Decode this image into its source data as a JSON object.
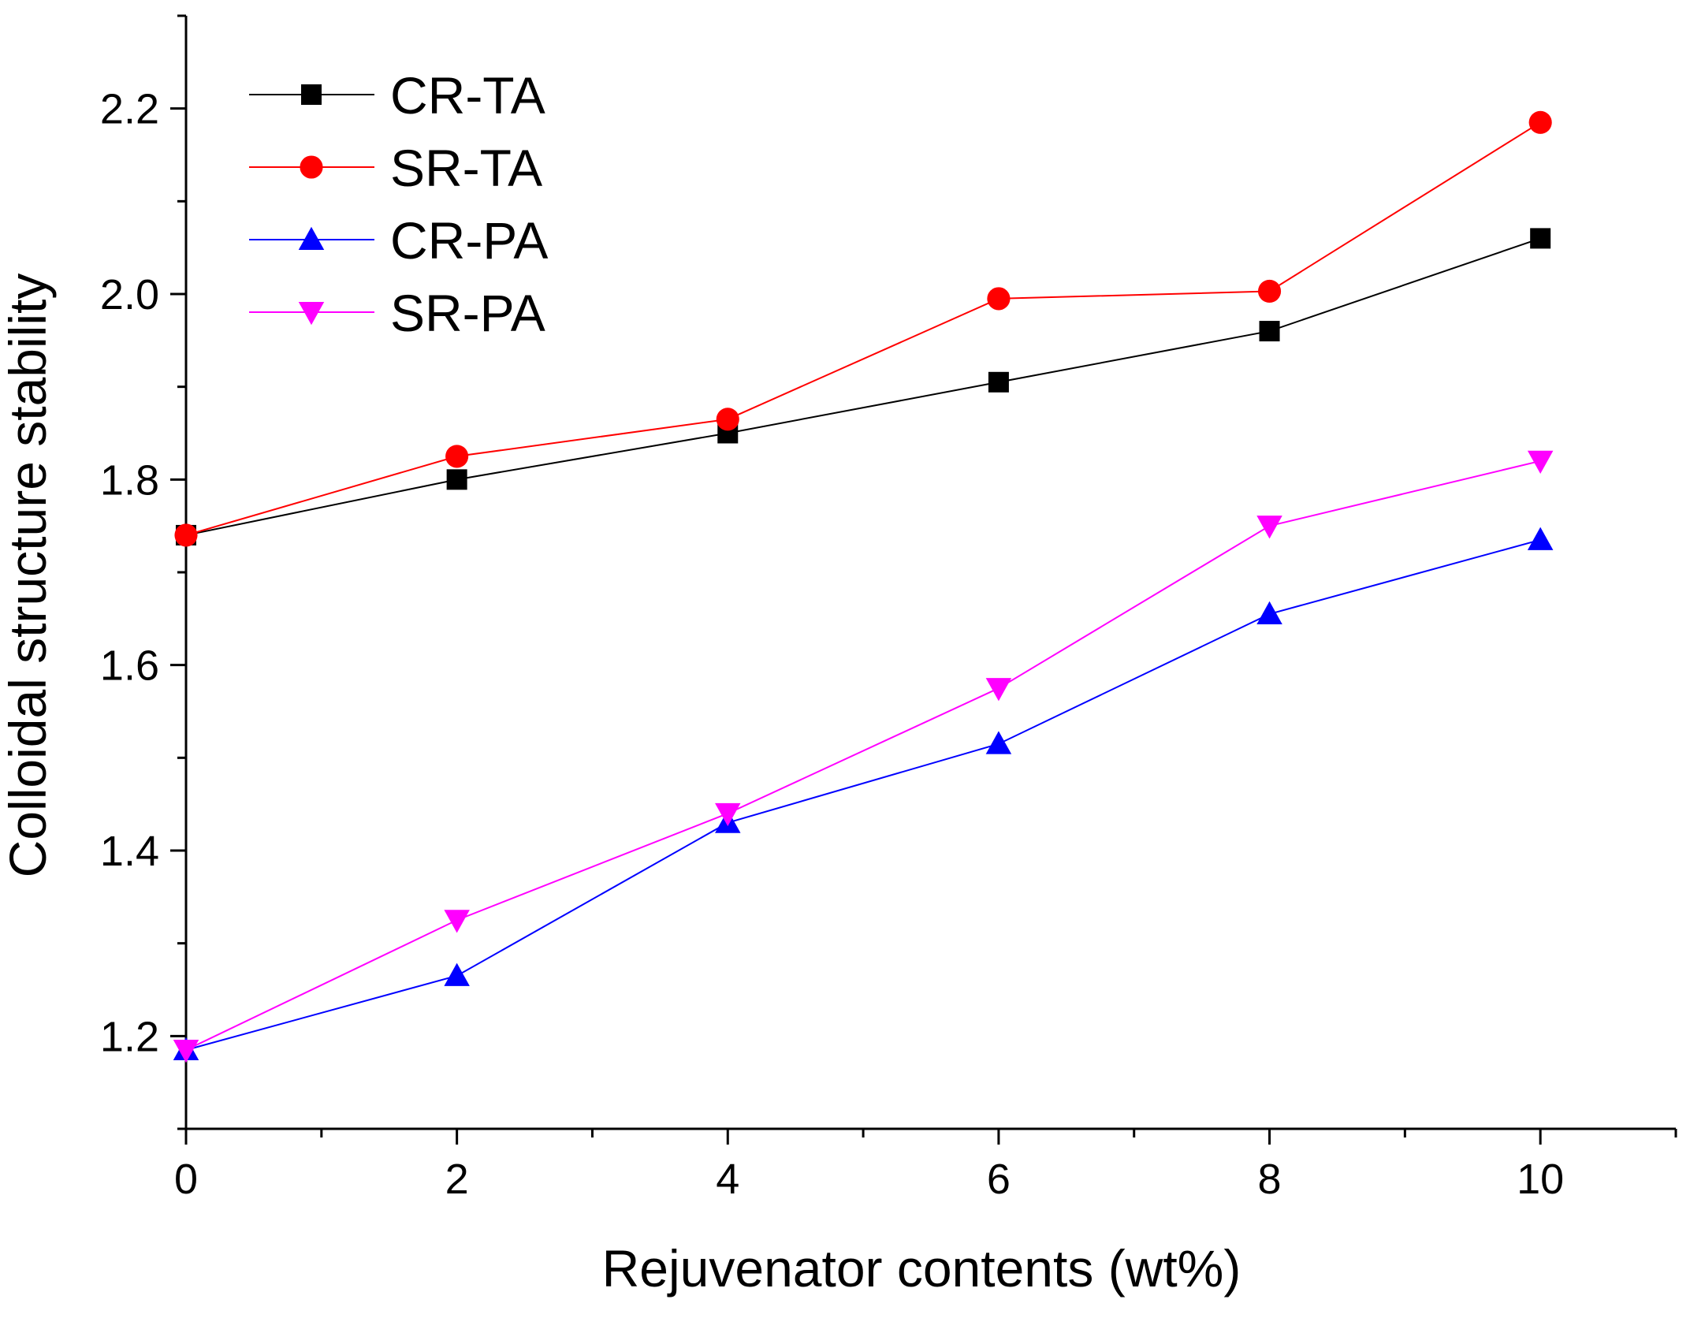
{
  "chart_data": {
    "type": "line",
    "title": "",
    "xlabel": "Rejuvenator contents (wt%)",
    "ylabel": "Colloidal structure stability",
    "xlim": [
      0,
      11
    ],
    "ylim": [
      1.1,
      2.3
    ],
    "x_ticks": [
      0,
      2,
      4,
      6,
      8,
      10
    ],
    "x_tick_labels": [
      "0",
      "2",
      "4",
      "6",
      "8",
      "10"
    ],
    "x_minor_ticks": [
      1,
      3,
      5,
      7,
      9,
      11
    ],
    "y_ticks": [
      1.2,
      1.4,
      1.6,
      1.8,
      2.0,
      2.2
    ],
    "y_tick_labels": [
      "1.2",
      "1.4",
      "1.6",
      "1.8",
      "2.0",
      "2.2"
    ],
    "y_minor_ticks": [
      1.1,
      1.3,
      1.5,
      1.7,
      1.9,
      2.1,
      2.3
    ],
    "grid": false,
    "legend_position": "top-left",
    "x": [
      0,
      2,
      4,
      6,
      8,
      10
    ],
    "series": [
      {
        "name": "CR-TA",
        "values": [
          1.74,
          1.8,
          1.85,
          1.905,
          1.96,
          2.06
        ],
        "color": "#000000",
        "marker": "square"
      },
      {
        "name": "SR-TA",
        "values": [
          1.74,
          1.825,
          1.865,
          1.995,
          2.003,
          2.185
        ],
        "color": "#ff0000",
        "marker": "circle"
      },
      {
        "name": "CR-PA",
        "values": [
          1.185,
          1.265,
          1.43,
          1.515,
          1.655,
          1.735
        ],
        "color": "#0000ff",
        "marker": "triangle-up"
      },
      {
        "name": "SR-PA",
        "values": [
          1.185,
          1.325,
          1.44,
          1.575,
          1.75,
          1.82
        ],
        "color": "#ff00ff",
        "marker": "triangle-down"
      }
    ]
  }
}
